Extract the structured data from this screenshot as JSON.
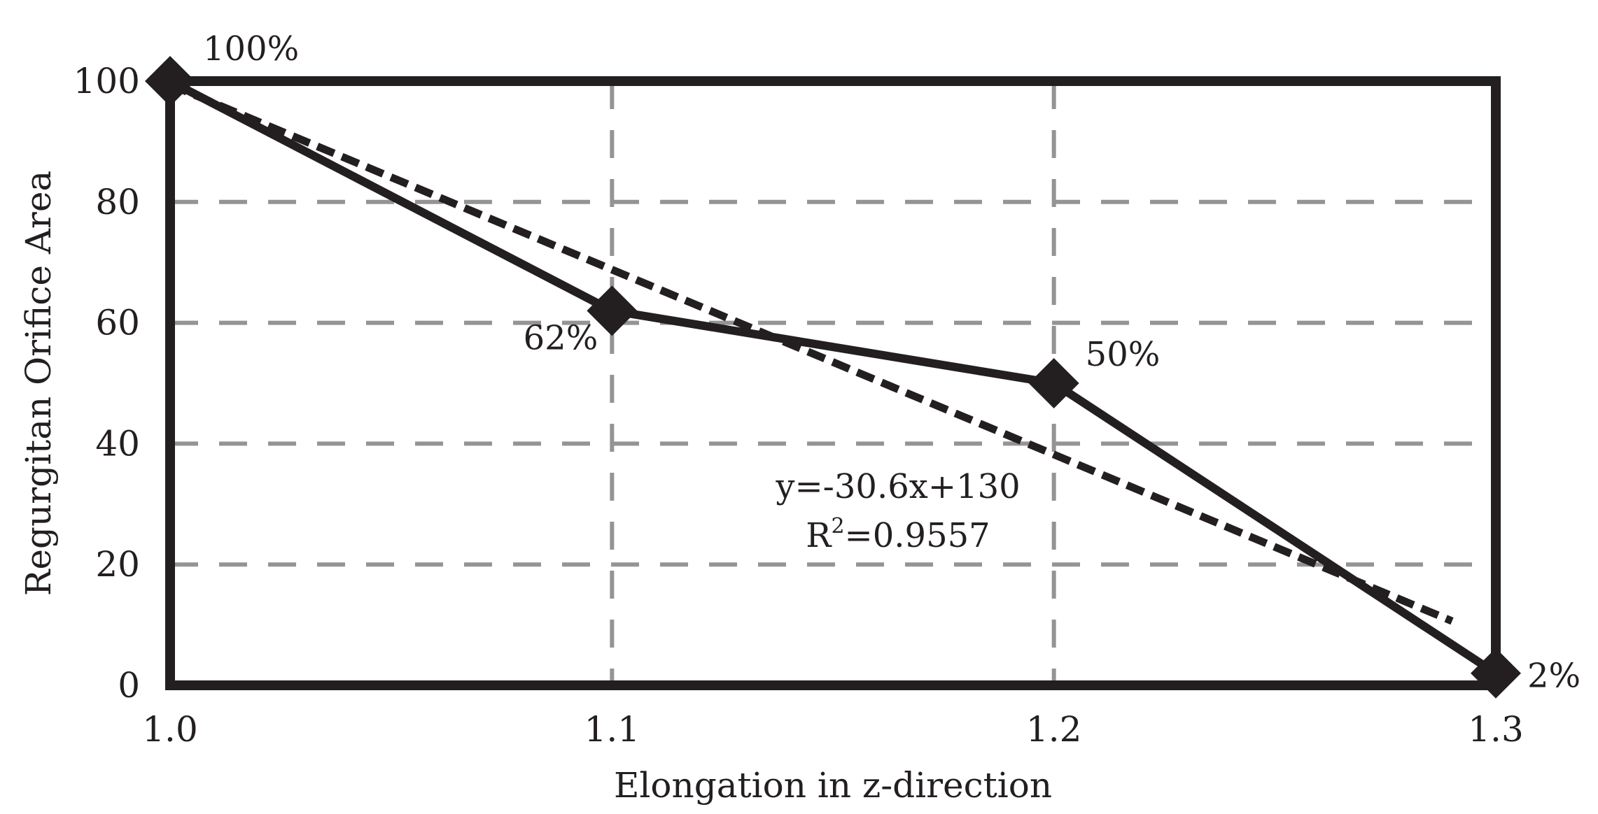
{
  "chart_data": {
    "type": "line",
    "xlabel": "Elongation in z-direction",
    "ylabel": "Regurgitan Orifice Area",
    "xlim": [
      1.0,
      1.3
    ],
    "ylim": [
      0,
      100
    ],
    "x_ticks": [
      "1.0",
      "1.1",
      "1.2",
      "1.3"
    ],
    "y_ticks": [
      "0",
      "20",
      "40",
      "60",
      "80",
      "100"
    ],
    "grid": "dashed",
    "series": [
      {
        "x": [
          1.0,
          1.1,
          1.2,
          1.3
        ],
        "y": [
          100,
          62,
          50,
          2
        ],
        "point_labels": [
          "100%",
          "62%",
          "50%",
          "2%"
        ],
        "marker": "diamond",
        "line": "solid"
      }
    ],
    "trendline": {
      "slope_per_unit_x": -30.6,
      "intercept": 130,
      "fit_line_y_at_x_start": 99.4,
      "fit_line_y_at_x_end": 7.6,
      "equation": "y=-30.6x+130",
      "r2_prefix": "R",
      "r2_sup": "2",
      "r2_value": "=0.9557",
      "line": "dashed"
    },
    "colors": {
      "line": "#231f20",
      "grid": "#949494",
      "text": "#231f20"
    }
  }
}
